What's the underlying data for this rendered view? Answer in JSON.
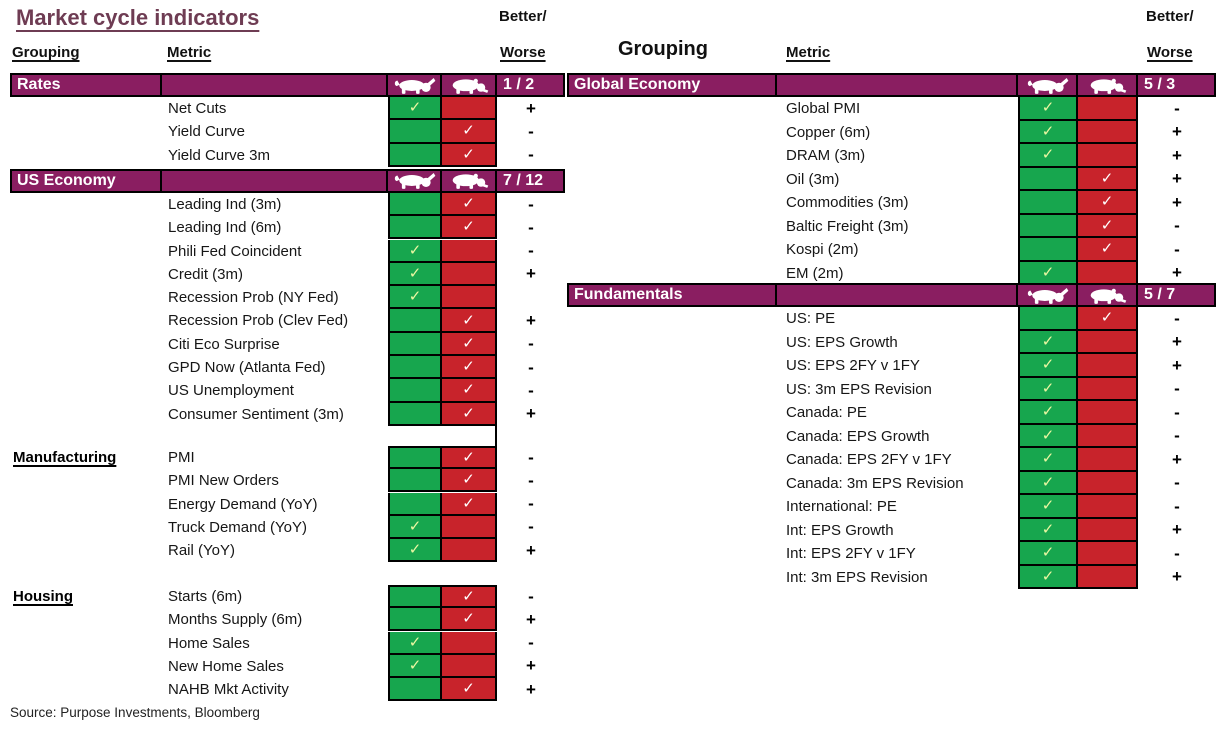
{
  "column_headers": {
    "grouping_left": "Grouping",
    "metric_left": "Metric",
    "better_left": "Better/",
    "worse_left": "Worse",
    "grouping_right": "Grouping",
    "metric_right": "Metric",
    "better_right": "Better/",
    "worse_right": "Worse"
  },
  "icons": {
    "bull_column": "bull-icon",
    "bear_column": "bear-icon",
    "check_glyph": "✓"
  },
  "colors": {
    "header_purple": "#8a1e61",
    "bull_green": "#17a64e",
    "bear_red": "#c8232b",
    "title_plum": "#6e3c53",
    "check_on_green": "#eaf7a2",
    "check_on_red": "#ffffff"
  },
  "chart_data": {
    "type": "table",
    "title": "Market cycle indicators",
    "source": "Source: Purpose Investments, Bloomberg",
    "tables": {
      "left": {
        "sections": [
          {
            "name": "Rates",
            "header_style": "bar",
            "score": "1 / 2",
            "rows": [
              {
                "metric": "Net Cuts",
                "signal": "bull",
                "trend": "+"
              },
              {
                "metric": "Yield Curve",
                "signal": "bear",
                "trend": "-"
              },
              {
                "metric": "Yield Curve 3m",
                "signal": "bear",
                "trend": "-"
              }
            ]
          },
          {
            "name": "US Economy",
            "header_style": "bar",
            "score": "7 / 12",
            "rows": [
              {
                "metric": "Leading Ind (3m)",
                "signal": "bear",
                "trend": "-"
              },
              {
                "metric": "Leading Ind (6m)",
                "signal": "bear",
                "trend": "-"
              },
              {
                "metric": "Phili Fed Coincident",
                "signal": "bull",
                "trend": "-"
              },
              {
                "metric": "Credit (3m)",
                "signal": "bull",
                "trend": "+"
              },
              {
                "metric": "Recession Prob (NY Fed)",
                "signal": "bull",
                "trend": ""
              },
              {
                "metric": "Recession Prob (Clev Fed)",
                "signal": "bear",
                "trend": "+"
              },
              {
                "metric": "Citi Eco Surprise",
                "signal": "bear",
                "trend": "-"
              },
              {
                "metric": "GPD Now (Atlanta Fed)",
                "signal": "bear",
                "trend": "-"
              },
              {
                "metric": "US Unemployment",
                "signal": "bear",
                "trend": "-"
              },
              {
                "metric": "Consumer Sentiment (3m)",
                "signal": "bear",
                "trend": "+"
              }
            ]
          },
          {
            "name": "Manufacturing",
            "header_style": "inline",
            "rows": [
              {
                "metric": "PMI",
                "signal": "bear",
                "trend": "-"
              },
              {
                "metric": "PMI New Orders",
                "signal": "bear",
                "trend": "-"
              },
              {
                "metric": "Energy Demand (YoY)",
                "signal": "bear",
                "trend": "-"
              },
              {
                "metric": "Truck Demand (YoY)",
                "signal": "bull",
                "trend": "-"
              },
              {
                "metric": "Rail (YoY)",
                "signal": "bull",
                "trend": "+"
              }
            ]
          },
          {
            "name": "Housing",
            "header_style": "inline",
            "rows": [
              {
                "metric": "Starts (6m)",
                "signal": "bear",
                "trend": "-"
              },
              {
                "metric": "Months Supply (6m)",
                "signal": "bear",
                "trend": "+"
              },
              {
                "metric": "Home Sales",
                "signal": "bull",
                "trend": "-"
              },
              {
                "metric": "New Home Sales",
                "signal": "bull",
                "trend": "+"
              },
              {
                "metric": "NAHB Mkt Activity",
                "signal": "bear",
                "trend": "+"
              }
            ]
          }
        ]
      },
      "right": {
        "sections": [
          {
            "name": "Global Economy",
            "header_style": "bar",
            "score": "5 / 3",
            "rows": [
              {
                "metric": "Global PMI",
                "signal": "bull",
                "trend": "-"
              },
              {
                "metric": "Copper (6m)",
                "signal": "bull",
                "trend": "+"
              },
              {
                "metric": "DRAM (3m)",
                "signal": "bull",
                "trend": "+"
              },
              {
                "metric": "Oil (3m)",
                "signal": "bear",
                "trend": "+"
              },
              {
                "metric": "Commodities (3m)",
                "signal": "bear",
                "trend": "+"
              },
              {
                "metric": "Baltic Freight (3m)",
                "signal": "bear",
                "trend": "-"
              },
              {
                "metric": "Kospi (2m)",
                "signal": "bear",
                "trend": "-"
              },
              {
                "metric": "EM (2m)",
                "signal": "bull",
                "trend": "+"
              }
            ]
          },
          {
            "name": "Fundamentals",
            "header_style": "bar",
            "score": "5 / 7",
            "rows": [
              {
                "metric": "US: PE",
                "signal": "bear",
                "trend": "-"
              },
              {
                "metric": "US: EPS Growth",
                "signal": "bull",
                "trend": "+"
              },
              {
                "metric": "US: EPS 2FY v 1FY",
                "signal": "bull",
                "trend": "+"
              },
              {
                "metric": "US: 3m EPS Revision",
                "signal": "bull",
                "trend": "-"
              },
              {
                "metric": "Canada: PE",
                "signal": "bull",
                "trend": "-"
              },
              {
                "metric": "Canada: EPS Growth",
                "signal": "bull",
                "trend": "-"
              },
              {
                "metric": "Canada: EPS 2FY v 1FY",
                "signal": "bull",
                "trend": "+"
              },
              {
                "metric": "Canada: 3m EPS Revision",
                "signal": "bull",
                "trend": "-"
              },
              {
                "metric": "International: PE",
                "signal": "bull",
                "trend": "-"
              },
              {
                "metric": "Int: EPS Growth",
                "signal": "bull",
                "trend": "+"
              },
              {
                "metric": "Int: EPS 2FY v 1FY",
                "signal": "bull",
                "trend": "-"
              },
              {
                "metric": "Int: 3m EPS Revision",
                "signal": "bull",
                "trend": "+"
              }
            ]
          }
        ]
      }
    }
  }
}
